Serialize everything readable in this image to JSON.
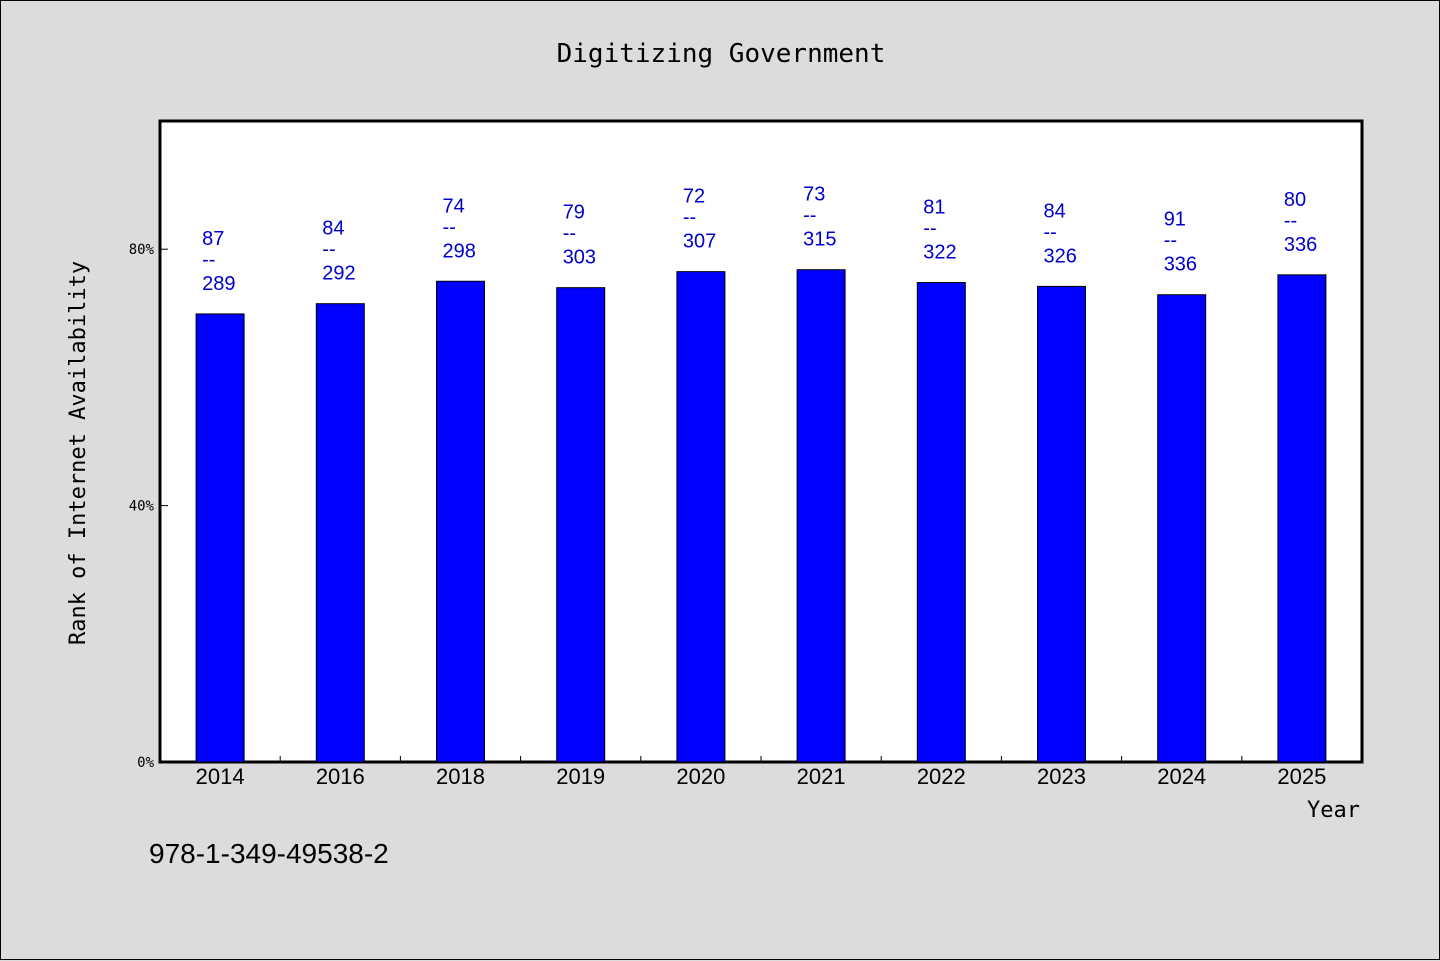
{
  "chart_data": {
    "type": "bar",
    "title": "Digitizing Government",
    "xlabel": "Year",
    "ylabel": "Rank of Internet Availability",
    "categories": [
      "2014",
      "2016",
      "2018",
      "2019",
      "2020",
      "2021",
      "2022",
      "2023",
      "2024",
      "2025"
    ],
    "values": [
      69.9,
      71.5,
      75.0,
      74.0,
      76.5,
      76.8,
      74.8,
      74.2,
      72.9,
      76.0
    ],
    "value_unit": "%",
    "data_labels": [
      {
        "top": "87",
        "sep": "--",
        "bottom": "289"
      },
      {
        "top": "84",
        "sep": "--",
        "bottom": "292"
      },
      {
        "top": "74",
        "sep": "--",
        "bottom": "298"
      },
      {
        "top": "79",
        "sep": "--",
        "bottom": "303"
      },
      {
        "top": "72",
        "sep": "--",
        "bottom": "307"
      },
      {
        "top": "73",
        "sep": "--",
        "bottom": "315"
      },
      {
        "top": "81",
        "sep": "--",
        "bottom": "322"
      },
      {
        "top": "84",
        "sep": "--",
        "bottom": "326"
      },
      {
        "top": "91",
        "sep": "--",
        "bottom": "336"
      },
      {
        "top": "80",
        "sep": "--",
        "bottom": "336"
      }
    ],
    "ylim": [
      0,
      100
    ],
    "yticks": [
      0,
      40,
      80
    ],
    "ytick_labels": [
      "0%",
      "40%",
      "80%"
    ],
    "grid": false,
    "legend": "none",
    "bar_color": "#0000ff",
    "label_color": "#0000cc",
    "plot_background": "#ffffff",
    "page_background": "#dcdcdc"
  },
  "footer": {
    "isbn": "978-1-349-49538-2"
  }
}
